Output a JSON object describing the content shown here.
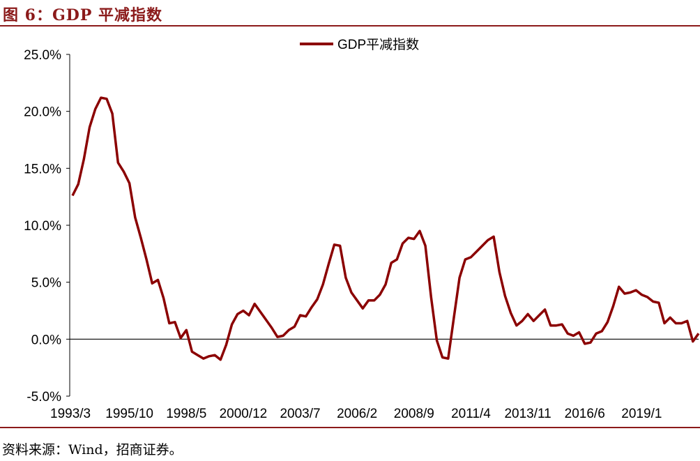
{
  "header": {
    "title": "图 6：GDP 平减指数"
  },
  "footer": {
    "source": "资料来源：Wind，招商证券。"
  },
  "colors": {
    "accent": "#8B1A1A",
    "series": "#8B0000",
    "axis": "#000000",
    "text": "#000000"
  },
  "chart_data": {
    "type": "line",
    "title": "",
    "xlabel": "",
    "ylabel": "",
    "ylim": [
      -5.0,
      25.0
    ],
    "y_ticks": [
      -5.0,
      0.0,
      5.0,
      10.0,
      15.0,
      20.0,
      25.0
    ],
    "y_tick_labels": [
      "-5.0%",
      "0.0%",
      "5.0%",
      "10.0%",
      "15.0%",
      "20.0%",
      "25.0%"
    ],
    "x_tick_labels": [
      "1993/3",
      "1995/10",
      "1998/5",
      "2000/12",
      "2003/7",
      "2006/2",
      "2008/9",
      "2011/4",
      "2013/11",
      "2016/6",
      "2019/1"
    ],
    "x_tick_indices": [
      0,
      10,
      20,
      30,
      40,
      50,
      60,
      70,
      80,
      90,
      100
    ],
    "legend": {
      "label": "GDP平减指数",
      "position": "top-center"
    },
    "series": [
      {
        "name": "GDP平减指数",
        "values": [
          12.6,
          13.6,
          15.8,
          18.6,
          20.2,
          21.2,
          21.1,
          19.8,
          15.5,
          14.7,
          13.7,
          10.7,
          8.9,
          7.0,
          4.9,
          5.2,
          3.6,
          1.4,
          1.5,
          0.1,
          0.8,
          -1.1,
          -1.4,
          -1.7,
          -1.5,
          -1.4,
          -1.8,
          -0.5,
          1.3,
          2.2,
          2.5,
          2.1,
          3.1,
          2.4,
          1.7,
          1.0,
          0.2,
          0.3,
          0.8,
          1.1,
          2.1,
          2.0,
          2.8,
          3.5,
          4.8,
          6.6,
          8.3,
          8.2,
          5.4,
          4.1,
          3.4,
          2.7,
          3.4,
          3.4,
          3.9,
          4.8,
          6.7,
          7.0,
          8.4,
          8.9,
          8.8,
          9.5,
          8.2,
          3.7,
          -0.1,
          -1.6,
          -1.7,
          1.9,
          5.4,
          7.0,
          7.2,
          7.7,
          8.2,
          8.7,
          9.0,
          5.9,
          3.8,
          2.3,
          1.2,
          1.6,
          2.2,
          1.6,
          2.1,
          2.6,
          1.2,
          1.2,
          1.3,
          0.5,
          0.3,
          0.6,
          -0.4,
          -0.3,
          0.5,
          0.7,
          1.5,
          2.9,
          4.6,
          4.0,
          4.1,
          4.3,
          3.9,
          3.7,
          3.3,
          3.2,
          1.4,
          1.9,
          1.4,
          1.4,
          1.6,
          -0.2,
          0.5
        ]
      }
    ]
  }
}
